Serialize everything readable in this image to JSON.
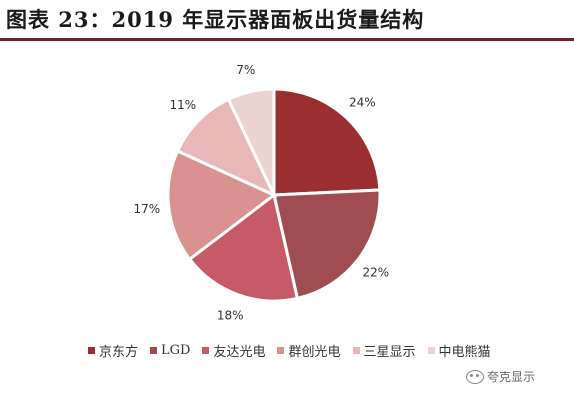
{
  "title": "图表 23：2019 年显示器面板出货量结构",
  "chart_data": {
    "type": "pie",
    "title": "图表 23：2019 年显示器面板出货量结构",
    "series": [
      {
        "name": "京东方",
        "value": 24,
        "label": "24%",
        "color": "#9b2e30"
      },
      {
        "name": "LGD",
        "value": 22,
        "label": "22%",
        "color": "#a04d52"
      },
      {
        "name": "友达光电",
        "value": 18,
        "label": "18%",
        "color": "#c65a66"
      },
      {
        "name": "群创光电",
        "value": 17,
        "label": "17%",
        "color": "#d9928f"
      },
      {
        "name": "三星显示",
        "value": 11,
        "label": "11%",
        "color": "#e8b7b7"
      },
      {
        "name": "中电熊猫",
        "value": 7,
        "label": "7%",
        "color": "#ecd3d1"
      }
    ],
    "legend_position": "bottom",
    "start_angle": "12 o'clock",
    "direction": "clockwise"
  },
  "watermark": {
    "text": "夸克显示",
    "icon": "wechat-icon"
  }
}
